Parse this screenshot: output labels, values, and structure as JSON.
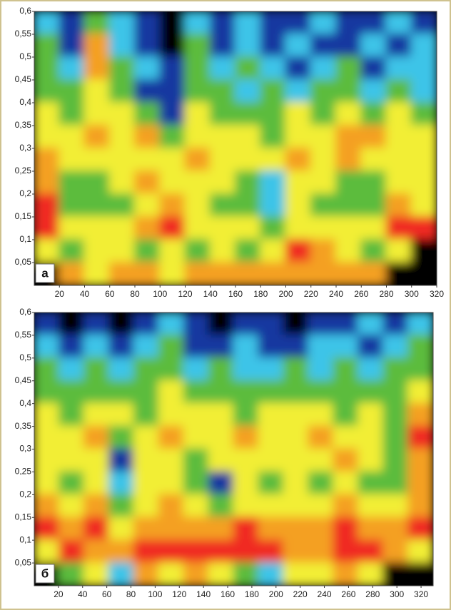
{
  "chart_data": [
    {
      "type": "heatmap",
      "label": "а",
      "colorscale": [
        "#000000",
        "#1238a0",
        "#3cc4e8",
        "#5cbc3c",
        "#f2ee34",
        "#f4a024",
        "#f02a24"
      ],
      "xlim": [
        0,
        320
      ],
      "xticks": [
        20,
        40,
        60,
        80,
        100,
        120,
        140,
        160,
        180,
        200,
        220,
        240,
        260,
        280,
        300,
        320
      ],
      "ylim": [
        0,
        0.6
      ],
      "yticks": [
        {
          "value": 0.05,
          "label": "0,05"
        },
        {
          "value": 0.1,
          "label": "0,1"
        },
        {
          "value": 0.15,
          "label": "0,15"
        },
        {
          "value": 0.2,
          "label": "0,2"
        },
        {
          "value": 0.25,
          "label": "0,25"
        },
        {
          "value": 0.3,
          "label": "0,3"
        },
        {
          "value": 0.35,
          "label": "0,35"
        },
        {
          "value": 0.4,
          "label": "0,4"
        },
        {
          "value": 0.45,
          "label": "0,45"
        },
        {
          "value": 0.5,
          "label": "0,5"
        },
        {
          "value": 0.55,
          "label": "0,55"
        },
        {
          "value": 0.6,
          "label": "0,6"
        }
      ],
      "z": [
        [
          2,
          1,
          3,
          2,
          1,
          0,
          2,
          1,
          2,
          1,
          1,
          2,
          1,
          1,
          2,
          1
        ],
        [
          3,
          1,
          5,
          2,
          1,
          0,
          3,
          1,
          2,
          1,
          2,
          1,
          1,
          2,
          1,
          2
        ],
        [
          3,
          2,
          5,
          3,
          2,
          1,
          3,
          2,
          3,
          2,
          1,
          2,
          3,
          1,
          2,
          2
        ],
        [
          3,
          3,
          4,
          3,
          1,
          1,
          3,
          3,
          2,
          3,
          2,
          3,
          3,
          2,
          3,
          2
        ],
        [
          4,
          3,
          4,
          4,
          3,
          1,
          4,
          3,
          3,
          3,
          4,
          3,
          4,
          3,
          4,
          3
        ],
        [
          4,
          4,
          5,
          4,
          5,
          3,
          4,
          4,
          4,
          3,
          4,
          4,
          5,
          5,
          4,
          4
        ],
        [
          5,
          4,
          4,
          4,
          4,
          4,
          5,
          4,
          4,
          4,
          5,
          4,
          5,
          4,
          4,
          4
        ],
        [
          5,
          3,
          3,
          4,
          5,
          4,
          4,
          4,
          3,
          2,
          4,
          4,
          3,
          3,
          4,
          4
        ],
        [
          6,
          3,
          3,
          3,
          4,
          5,
          4,
          3,
          3,
          2,
          4,
          3,
          3,
          3,
          5,
          4
        ],
        [
          6,
          4,
          4,
          4,
          5,
          6,
          4,
          4,
          4,
          3,
          4,
          4,
          4,
          4,
          6,
          6
        ],
        [
          4,
          3,
          4,
          4,
          3,
          4,
          3,
          4,
          3,
          4,
          6,
          5,
          4,
          3,
          4,
          0
        ],
        [
          0,
          5,
          4,
          5,
          5,
          4,
          5,
          5,
          5,
          5,
          5,
          5,
          5,
          5,
          0,
          0
        ]
      ]
    },
    {
      "type": "heatmap",
      "label": "б",
      "colorscale": [
        "#000000",
        "#1238a0",
        "#3cc4e8",
        "#5cbc3c",
        "#f2ee34",
        "#f4a024",
        "#f02a24"
      ],
      "xlim": [
        0,
        330
      ],
      "xticks": [
        20,
        40,
        60,
        80,
        100,
        120,
        140,
        160,
        180,
        200,
        220,
        240,
        260,
        280,
        300,
        320
      ],
      "ylim": [
        0,
        0.6
      ],
      "yticks": [
        {
          "value": 0.05,
          "label": "0,05"
        },
        {
          "value": 0.1,
          "label": "0,1"
        },
        {
          "value": 0.15,
          "label": "0,15"
        },
        {
          "value": 0.2,
          "label": "0,2"
        },
        {
          "value": 0.25,
          "label": "0,25"
        },
        {
          "value": 0.3,
          "label": "0,3"
        },
        {
          "value": 0.35,
          "label": "0,35"
        },
        {
          "value": 0.4,
          "label": "0,4"
        },
        {
          "value": 0.45,
          "label": "0,45"
        },
        {
          "value": 0.5,
          "label": "0,5"
        },
        {
          "value": 0.55,
          "label": "0,55"
        },
        {
          "value": 0.6,
          "label": "0,6"
        }
      ],
      "z": [
        [
          1,
          0,
          1,
          0,
          1,
          2,
          1,
          0,
          1,
          1,
          0,
          1,
          1,
          2,
          1,
          2
        ],
        [
          2,
          1,
          2,
          1,
          2,
          3,
          1,
          1,
          2,
          1,
          1,
          2,
          2,
          1,
          2,
          3
        ],
        [
          3,
          2,
          3,
          2,
          3,
          3,
          2,
          3,
          2,
          2,
          3,
          2,
          3,
          2,
          3,
          3
        ],
        [
          3,
          3,
          3,
          3,
          3,
          4,
          3,
          3,
          3,
          3,
          3,
          3,
          3,
          3,
          3,
          4
        ],
        [
          4,
          3,
          4,
          4,
          3,
          4,
          4,
          4,
          3,
          4,
          4,
          4,
          3,
          4,
          3,
          5
        ],
        [
          4,
          4,
          5,
          3,
          4,
          5,
          4,
          4,
          5,
          4,
          4,
          5,
          4,
          4,
          3,
          6
        ],
        [
          4,
          4,
          4,
          1,
          4,
          4,
          3,
          4,
          4,
          4,
          4,
          4,
          5,
          4,
          3,
          5
        ],
        [
          4,
          3,
          4,
          2,
          4,
          4,
          3,
          1,
          4,
          3,
          4,
          3,
          4,
          3,
          3,
          5
        ],
        [
          5,
          4,
          5,
          3,
          4,
          5,
          4,
          3,
          4,
          4,
          4,
          4,
          5,
          4,
          4,
          5
        ],
        [
          6,
          5,
          6,
          4,
          5,
          5,
          5,
          5,
          6,
          5,
          5,
          5,
          6,
          5,
          5,
          6
        ],
        [
          4,
          6,
          5,
          5,
          6,
          6,
          6,
          6,
          6,
          6,
          5,
          5,
          6,
          6,
          5,
          4
        ],
        [
          0,
          3,
          4,
          2,
          5,
          4,
          5,
          4,
          3,
          2,
          4,
          4,
          5,
          4,
          0,
          0
        ]
      ]
    }
  ]
}
